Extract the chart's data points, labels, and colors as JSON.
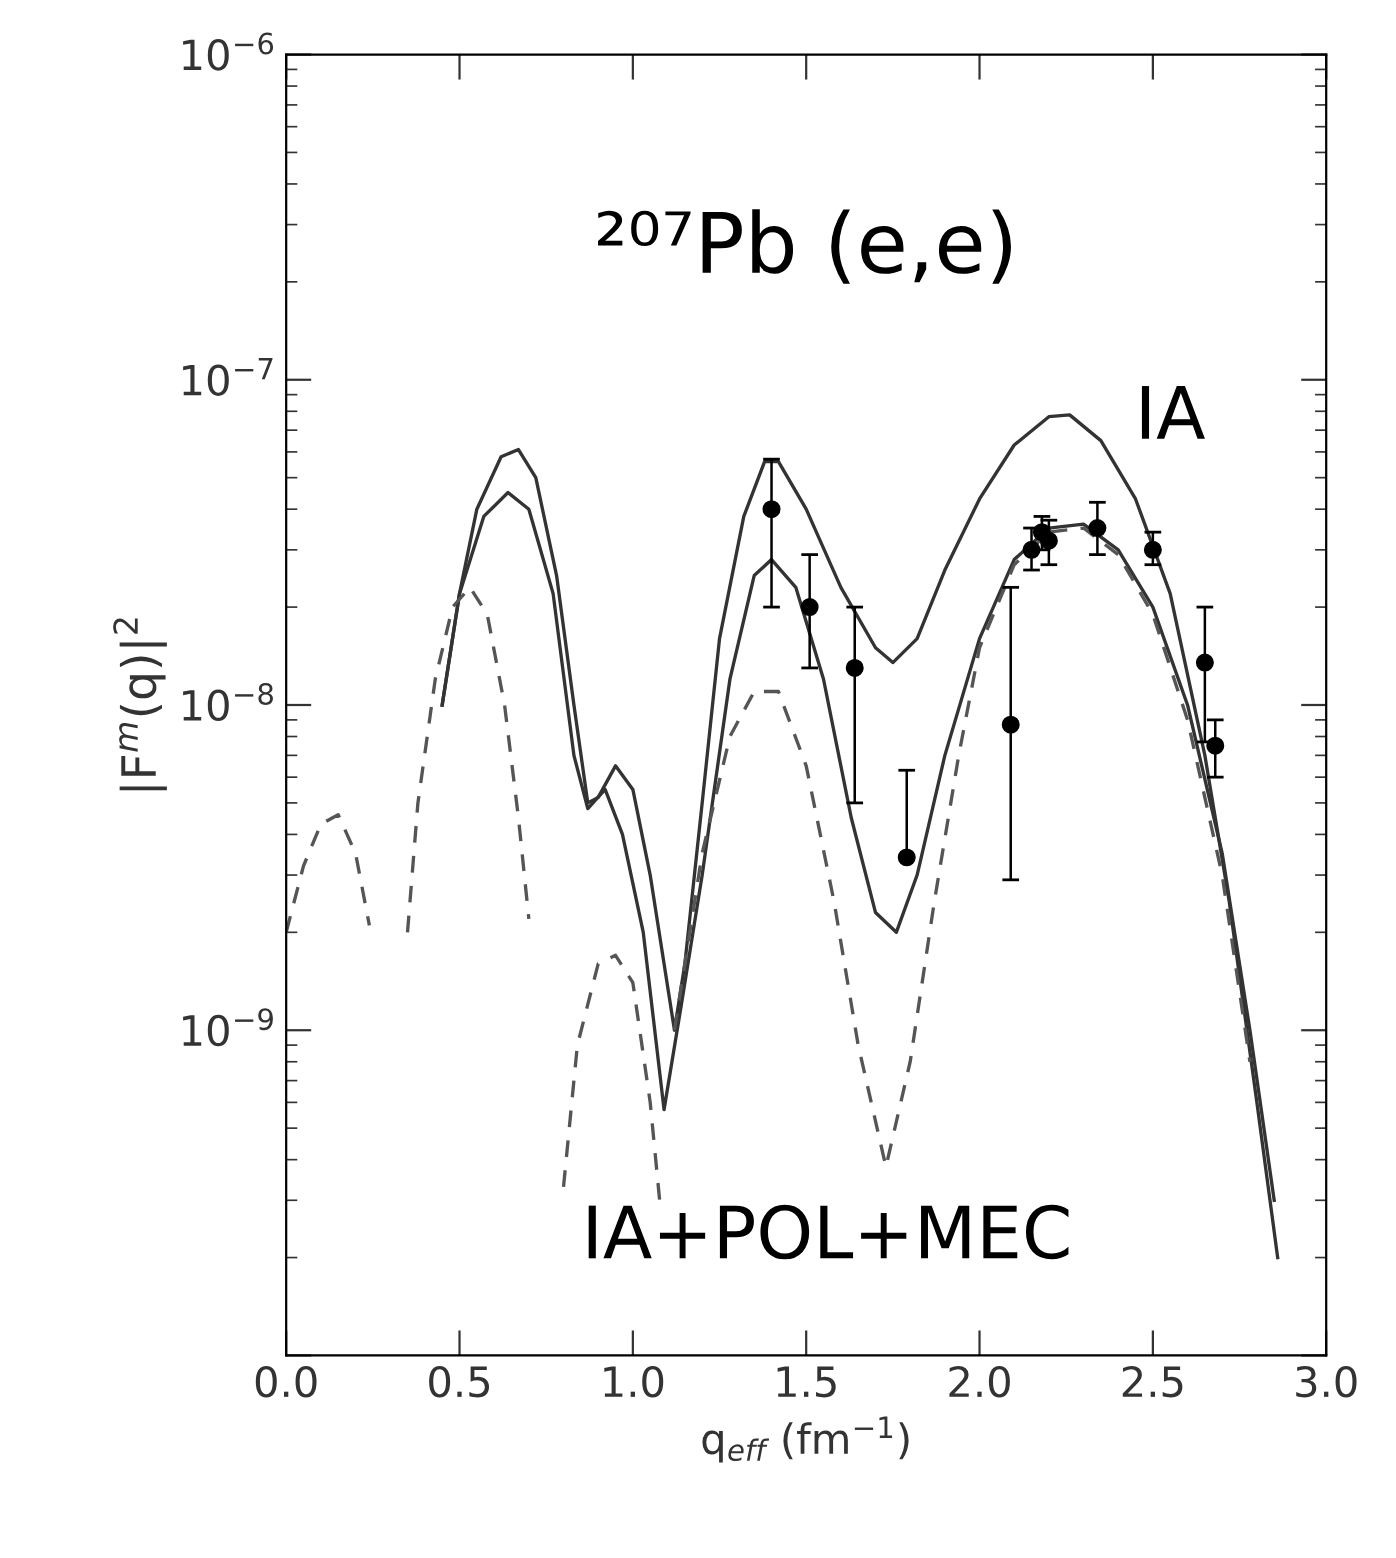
{
  "chart_data": {
    "type": "line",
    "title": "²⁰⁷Pb (e,e)",
    "xlabel": "q$_{eff}$ (fm$^{−1}$)",
    "ylabel": "|F$^{m}$(q)|$^{2}$",
    "log": "y",
    "grid": false,
    "xlim": [
      0.0,
      3.0
    ],
    "xticks": [
      {
        "value": 0.0,
        "label": "0.0"
      },
      0.5,
      {
        "value": 1.0,
        "label": "1.0"
      },
      1.5,
      {
        "value": 2.0,
        "label": "2.0"
      },
      2.5,
      {
        "value": 3.0,
        "label": "3.0"
      }
    ],
    "ylim": [
      1e-10,
      1e-06
    ],
    "yticks": [
      {
        "value": 1e-10,
        "label": null
      },
      {
        "value": 1e-09,
        "label": "10$^{−9}$"
      },
      {
        "value": 1e-08,
        "label": "10$^{−8}$"
      },
      {
        "value": 1e-07,
        "label": "10$^{−7}$"
      },
      {
        "value": 1e-06,
        "label": "10$^{−6}$"
      }
    ],
    "annotations": [
      "IA",
      "IA+POL+MEC"
    ],
    "series": [
      {
        "color": "#333333",
        "line_style": "solid",
        "x": [
          0.45,
          0.5,
          0.55,
          0.62,
          0.67,
          0.72,
          0.78,
          0.83,
          0.87,
          0.9,
          0.95,
          1.0,
          1.05,
          1.12,
          1.15,
          1.2,
          1.25,
          1.32,
          1.38,
          1.42,
          1.5,
          1.6,
          1.7,
          1.75,
          1.82,
          1.9,
          2.0,
          2.1,
          2.2,
          2.26,
          2.35,
          2.45,
          2.55,
          2.65,
          2.72,
          2.8,
          2.86
        ],
        "values": [
          1e-08,
          2.2e-08,
          4e-08,
          5.8e-08,
          6.1e-08,
          5e-08,
          2.5e-08,
          1e-08,
          5e-09,
          5.2e-09,
          6.5e-09,
          5.5e-09,
          3e-09,
          1e-09,
          1.6e-09,
          5e-09,
          1.6e-08,
          3.8e-08,
          5.6e-08,
          5.6e-08,
          4e-08,
          2.3e-08,
          1.5e-08,
          1.35e-08,
          1.6e-08,
          2.6e-08,
          4.3e-08,
          6.3e-08,
          7.7e-08,
          7.8e-08,
          6.5e-08,
          4.3e-08,
          2.2e-08,
          7e-09,
          2.5e-09,
          6e-10,
          2e-10
        ]
      },
      {
        "color": "#333333",
        "line_style": "solid",
        "x": [
          0.45,
          0.5,
          0.57,
          0.64,
          0.7,
          0.77,
          0.83,
          0.87,
          0.92,
          0.97,
          1.03,
          1.09,
          1.14,
          1.2,
          1.28,
          1.35,
          1.4,
          1.47,
          1.55,
          1.63,
          1.7,
          1.76,
          1.82,
          1.9,
          2.0,
          2.1,
          2.2,
          2.3,
          2.4,
          2.5,
          2.6,
          2.7,
          2.78,
          2.85
        ],
        "values": [
          1e-08,
          2.2e-08,
          3.8e-08,
          4.5e-08,
          4e-08,
          2.2e-08,
          7e-09,
          4.8e-09,
          5.5e-09,
          4e-09,
          2e-09,
          5.7e-10,
          1.2e-09,
          3e-09,
          1.2e-08,
          2.5e-08,
          2.8e-08,
          2.3e-08,
          1.2e-08,
          4.5e-09,
          2.3e-09,
          2e-09,
          3e-09,
          7e-09,
          1.6e-08,
          2.8e-08,
          3.5e-08,
          3.6e-08,
          3e-08,
          2e-08,
          1e-08,
          3.5e-09,
          1e-09,
          3e-10
        ]
      },
      {
        "color": "#555555",
        "line_style": "dashed",
        "x": [
          0.0,
          0.05,
          0.1,
          0.15,
          0.2,
          0.24,
          0.3,
          0.35,
          0.38,
          0.43,
          0.48,
          0.53,
          0.58,
          0.63,
          0.67,
          0.7,
          0.75,
          0.8,
          0.84,
          0.9,
          0.95,
          1.0,
          1.05,
          1.08,
          1.1,
          1.12,
          1.2,
          1.28,
          1.35,
          1.42,
          1.5,
          1.58,
          1.65,
          1.73,
          1.8,
          1.87,
          1.94,
          2.0,
          2.1,
          2.2,
          2.3,
          2.4,
          2.5,
          2.6,
          2.7,
          2.78
        ],
        "values": [
          2e-09,
          3.2e-09,
          4.3e-09,
          4.6e-09,
          3.5e-09,
          2.1e-09,
          null,
          2e-09,
          5e-09,
          1.2e-08,
          2e-08,
          2.3e-08,
          1.9e-08,
          1e-08,
          4.5e-09,
          2.2e-09,
          null,
          3.3e-10,
          9e-10,
          1.6e-09,
          1.7e-09,
          1.4e-09,
          6e-10,
          2.8e-10,
          null,
          1e-09,
          3.5e-09,
          8e-09,
          1.1e-08,
          1.1e-08,
          6.5e-09,
          2.5e-09,
          9e-10,
          3.8e-10,
          8e-10,
          2.5e-09,
          7e-09,
          1.5e-08,
          2.7e-08,
          3.4e-08,
          3.5e-08,
          2.9e-08,
          1.9e-08,
          9e-09,
          3e-09,
          8e-10
        ]
      },
      {
        "type": "scatter",
        "color": "#000000",
        "marker": "circle",
        "x": [
          1.4,
          1.51,
          1.64,
          1.79,
          2.09,
          2.15,
          2.18,
          2.2,
          2.34,
          2.5,
          2.65,
          2.68
        ],
        "values": [
          4e-08,
          2e-08,
          1.3e-08,
          3.4e-09,
          8.7e-09,
          3e-08,
          3.4e-08,
          3.2e-08,
          3.5e-08,
          3e-08,
          1.35e-08,
          7.5e-09
        ],
        "errors": [
          [
            2e-08,
            5.7e-08
          ],
          [
            1.3e-08,
            2.9e-08
          ],
          [
            5e-09,
            2e-08
          ],
          [
            3.4e-09,
            6.3e-09
          ],
          [
            2.9e-09,
            2.3e-08
          ],
          [
            2.6e-08,
            3.5e-08
          ],
          [
            3e-08,
            3.8e-08
          ],
          [
            2.7e-08,
            3.7e-08
          ],
          [
            2.9e-08,
            4.2e-08
          ],
          [
            2.7e-08,
            3.4e-08
          ],
          [
            7.7e-09,
            2e-08
          ],
          [
            6e-09,
            9e-09
          ]
        ]
      }
    ]
  }
}
